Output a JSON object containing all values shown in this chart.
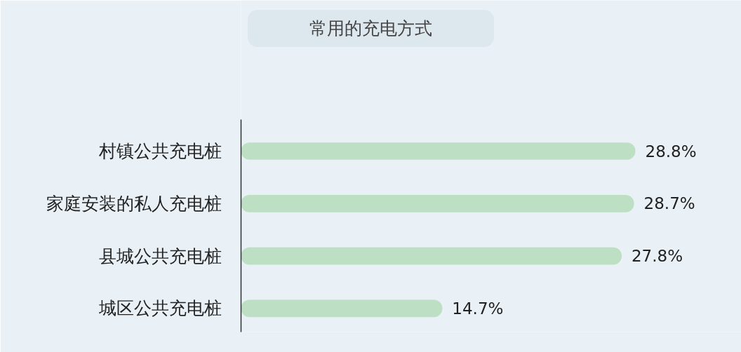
{
  "chart_data": {
    "type": "bar",
    "orientation": "horizontal",
    "title": "常用的充电方式",
    "categories": [
      "村镇公共充电桩",
      "家庭安装的私人充电桩",
      "县城公共充电桩",
      "城区公共充电桩"
    ],
    "values": [
      28.8,
      28.7,
      27.8,
      14.7
    ],
    "value_labels": [
      "28.8%",
      "28.7%",
      "27.8%",
      "14.7%"
    ],
    "color": "#bddfc3"
  }
}
